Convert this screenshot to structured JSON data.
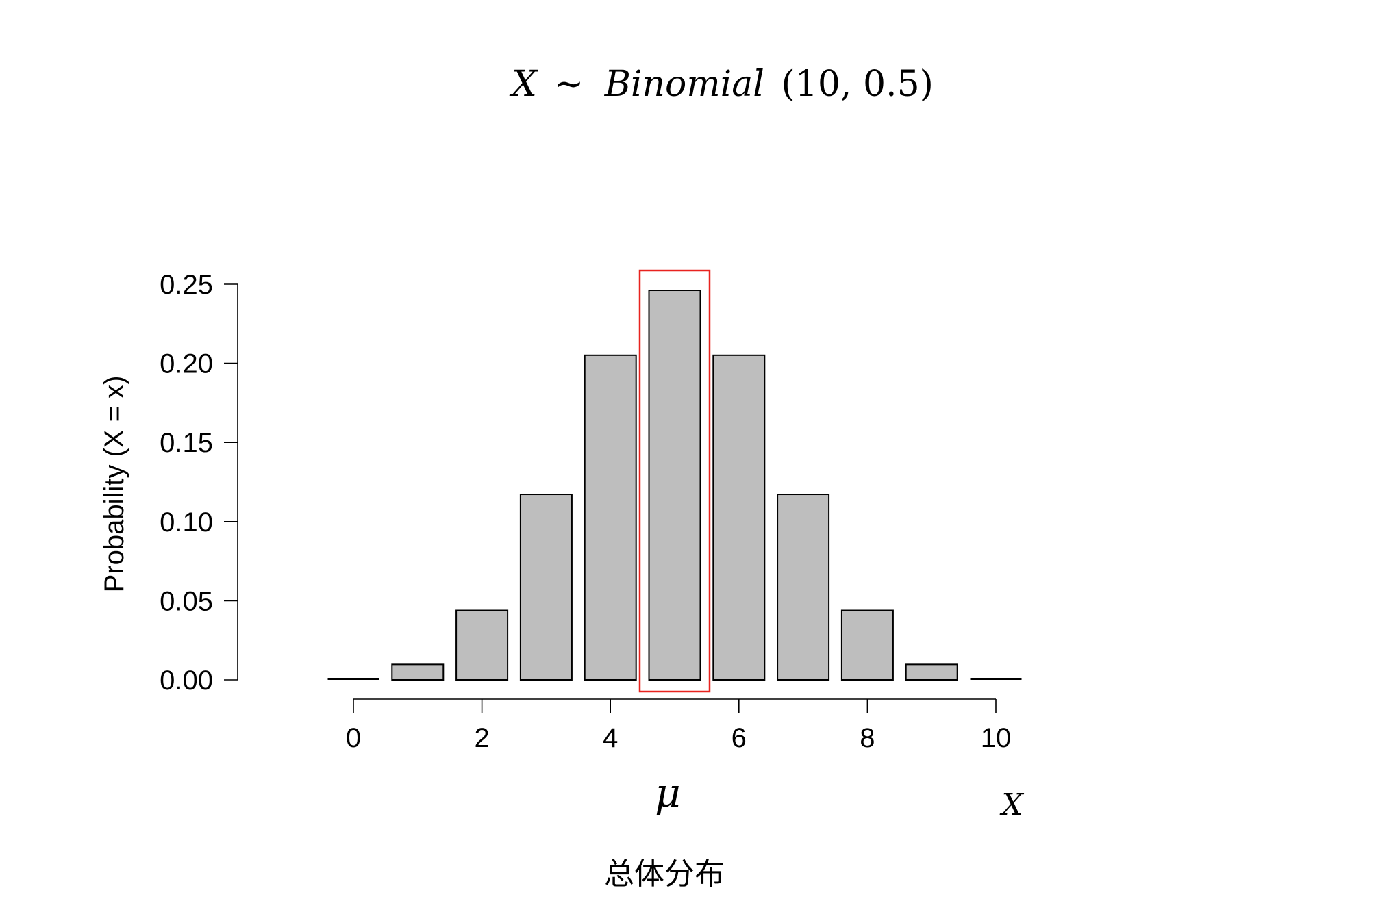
{
  "chart_data": {
    "type": "bar",
    "title": {
      "variable": "X",
      "operator": "~",
      "distribution": "Binomial",
      "params": "(10, 0.5)"
    },
    "ylabel": "Probability (X = x)",
    "x": [
      0,
      1,
      2,
      3,
      4,
      5,
      6,
      7,
      8,
      9,
      10
    ],
    "values": [
      0.001,
      0.0098,
      0.0439,
      0.1172,
      0.2051,
      0.2461,
      0.2051,
      0.1172,
      0.0439,
      0.0098,
      0.001
    ],
    "xlim": [
      0,
      10
    ],
    "ylim": [
      0,
      0.25
    ],
    "xticks": [
      "0",
      "2",
      "4",
      "6",
      "8",
      "10"
    ],
    "yticks": [
      "0.00",
      "0.05",
      "0.10",
      "0.15",
      "0.20",
      "0.25"
    ],
    "highlight": {
      "x": 5,
      "color": "#e8231f"
    },
    "mean_label": "μ",
    "axis_var_label": "X",
    "bar_fill": "#bebebe",
    "bar_stroke": "#000000",
    "grid": false,
    "caption": "总体分布"
  }
}
